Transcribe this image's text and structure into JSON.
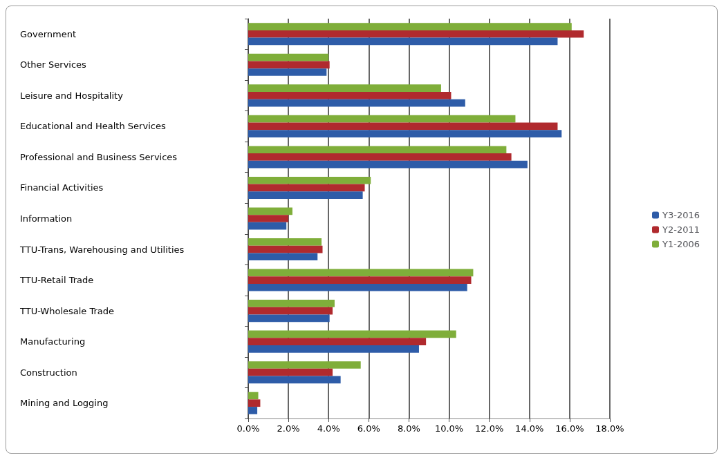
{
  "chart_data": {
    "type": "bar",
    "orientation": "horizontal",
    "categories": [
      "Government",
      "Other Services",
      "Leisure and Hospitality",
      "Educational and Health Services",
      "Professional and Business Services",
      "Financial Activities",
      "Information",
      "TTU-Trans, Warehousing and Utilities",
      "TTU-Retail Trade",
      "TTU-Wholesale Trade",
      "Manufacturing",
      "Construction",
      "Mining and Logging"
    ],
    "series": [
      {
        "name": "Y3-2016",
        "color": "#2e5ca8",
        "values": [
          15.4,
          3.9,
          10.8,
          15.6,
          13.9,
          5.7,
          1.9,
          3.45,
          10.9,
          4.05,
          8.5,
          4.6,
          0.45
        ]
      },
      {
        "name": "Y2-2011",
        "color": "#b02a2e",
        "values": [
          16.7,
          4.05,
          10.1,
          15.4,
          13.1,
          5.8,
          2.0,
          3.7,
          11.1,
          4.2,
          8.85,
          4.2,
          0.6
        ]
      },
      {
        "name": "Y1-2006",
        "color": "#7fae3a",
        "values": [
          16.1,
          4.0,
          9.6,
          13.3,
          12.85,
          6.1,
          2.2,
          3.65,
          11.2,
          4.3,
          10.35,
          5.6,
          0.5
        ]
      }
    ],
    "xlim": [
      0,
      18
    ],
    "xticks": [
      {
        "value": 0,
        "label": "0.0%"
      },
      {
        "value": 2,
        "label": "2.0%"
      },
      {
        "value": 4,
        "label": "4.0%"
      },
      {
        "value": 6,
        "label": "6.0%"
      },
      {
        "value": 8,
        "label": "8.0%"
      },
      {
        "value": 10,
        "label": "10.0%"
      },
      {
        "value": 12,
        "label": "12.0%"
      },
      {
        "value": 14,
        "label": "14.0%"
      },
      {
        "value": 16,
        "label": "16.0%"
      },
      {
        "value": 18,
        "label": "18.0%"
      }
    ],
    "grid": "x",
    "legend": "right"
  }
}
